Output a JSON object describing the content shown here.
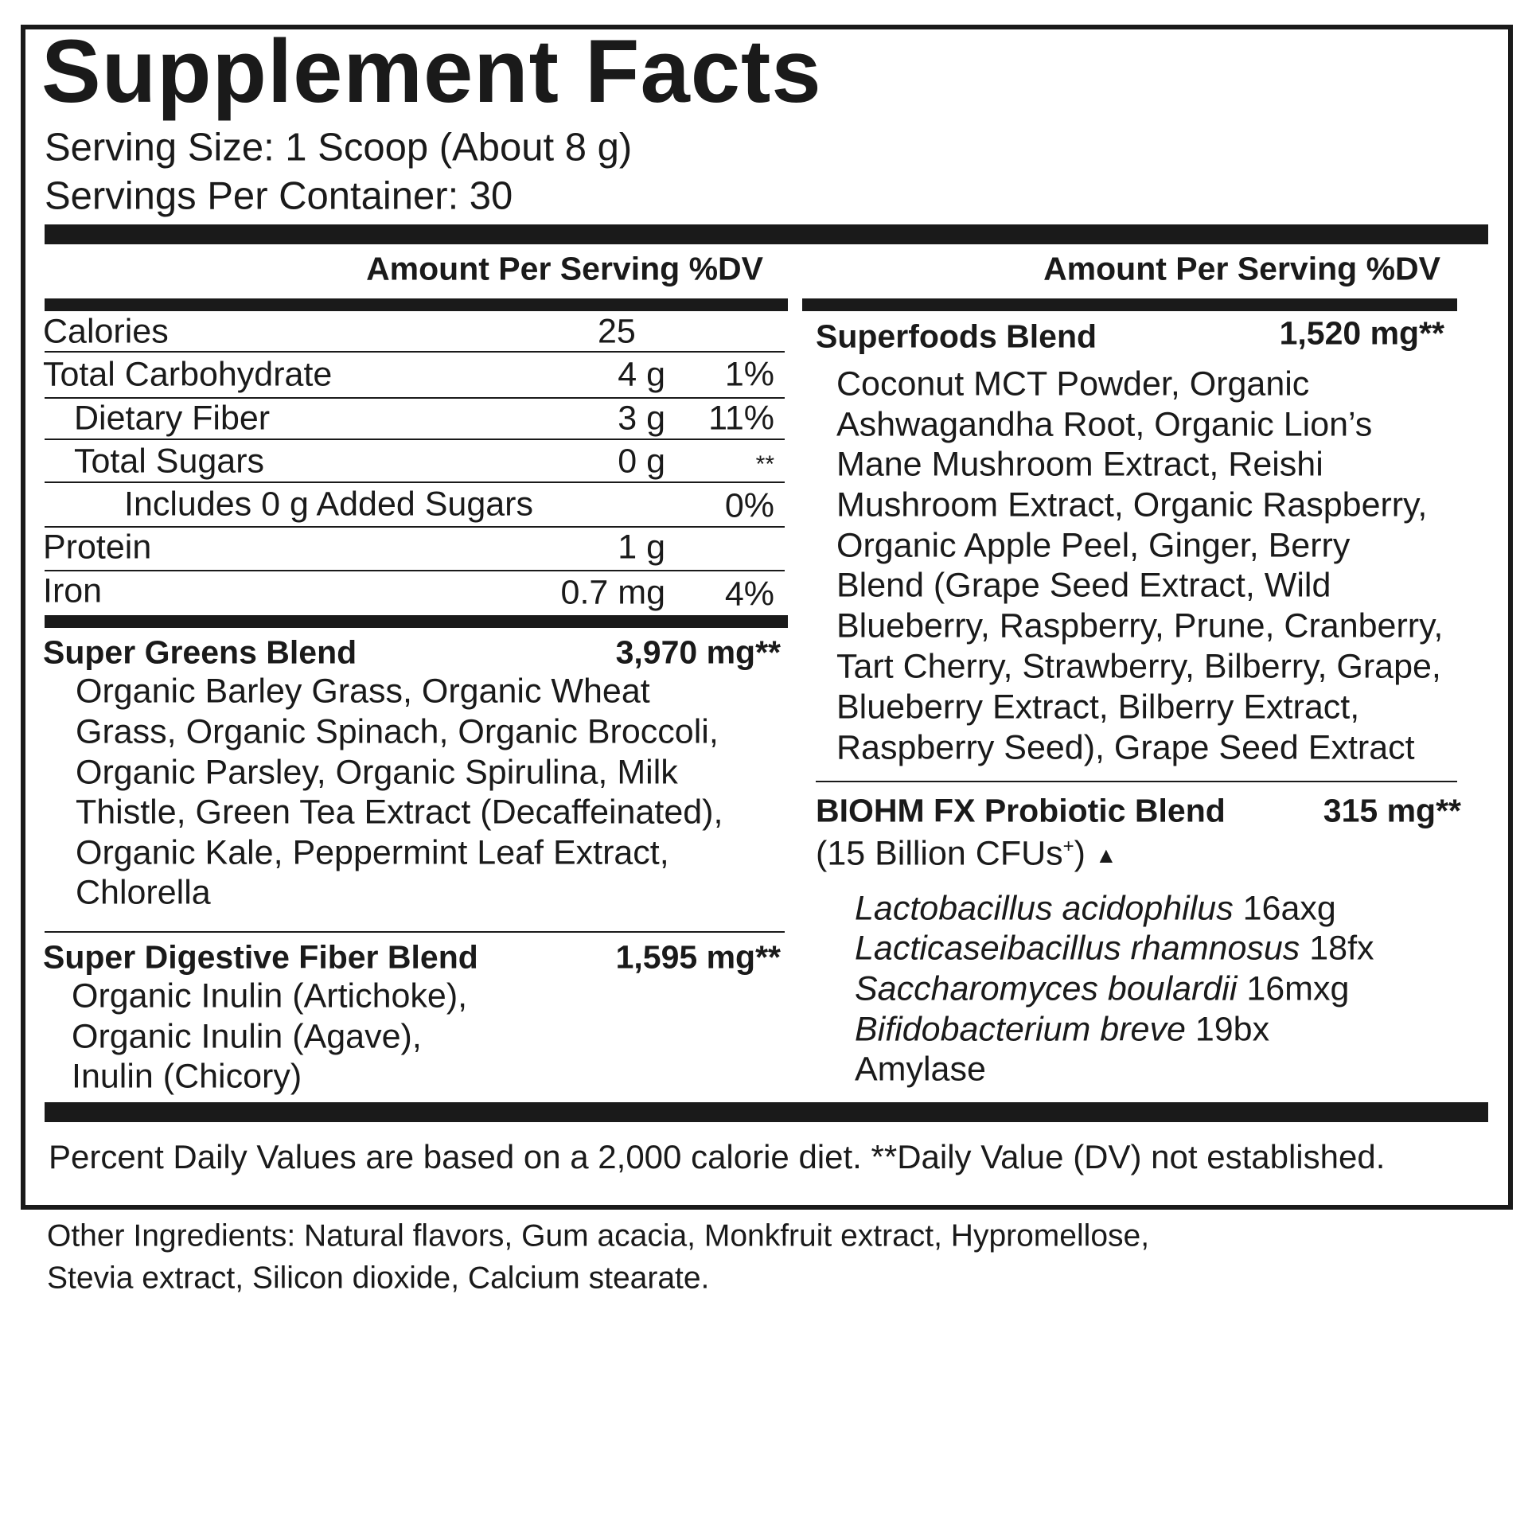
{
  "title": "Supplement Facts",
  "serving_size": "Serving Size: 1 Scoop (About 8 g)",
  "servings_per_container": "Servings Per Container: 30",
  "column_header": "Amount Per Serving %DV",
  "nutrients": [
    {
      "name": "Calories",
      "amount": "25",
      "dv": ""
    },
    {
      "name": "Total Carbohydrate",
      "amount": "4 g",
      "dv": "1%"
    },
    {
      "name": "Dietary Fiber",
      "amount": "3 g",
      "dv": "11%"
    },
    {
      "name": "Total Sugars",
      "amount": "0 g",
      "dv": "**"
    },
    {
      "name": "Includes 0 g Added Sugars",
      "amount": "",
      "dv": "0%"
    },
    {
      "name": "Protein",
      "amount": "1 g",
      "dv": ""
    },
    {
      "name": "Iron",
      "amount": "0.7 mg",
      "dv": "4%"
    }
  ],
  "super_greens": {
    "name": "Super Greens Blend",
    "amount": "3,970 mg**",
    "lines": [
      "Organic Barley Grass, Organic Wheat",
      "Grass, Organic Spinach, Organic Broccoli,",
      "Organic Parsley, Organic Spirulina, Milk",
      "Thistle, Green Tea Extract (Decaffeinated),",
      "Organic Kale, Peppermint Leaf Extract,",
      "Chlorella"
    ]
  },
  "super_digestive": {
    "name": "Super Digestive Fiber Blend",
    "amount": "1,595 mg**",
    "lines": [
      "Organic Inulin (Artichoke),",
      "Organic Inulin (Agave),",
      "Inulin (Chicory)"
    ]
  },
  "superfoods": {
    "name": "Superfoods Blend",
    "amount": "1,520 mg**",
    "lines": [
      "Coconut MCT Powder, Organic",
      "Ashwagandha Root, Organic Lion’s",
      "Mane Mushroom Extract, Reishi",
      "Mushroom Extract, Organic Raspberry,",
      "Organic Apple Peel, Ginger, Berry",
      "Blend (Grape Seed Extract, Wild",
      "Blueberry, Raspberry, Prune, Cranberry,",
      "Tart Cherry, Strawberry, Bilberry, Grape,",
      "Blueberry Extract, Bilberry Extract,",
      "Raspberry Seed), Grape Seed Extract"
    ]
  },
  "probiotic": {
    "name": "BIOHM FX Probiotic Blend",
    "amount": "315 mg**",
    "cfu_prefix": "(15 Billion CFUs",
    "cfu_sup": "+",
    "cfu_suffix": ")",
    "triangle": "▲",
    "strains": [
      {
        "species": "Lactobacillus acidophilus",
        "strain": "16axg"
      },
      {
        "species": "Lacticaseibacillus rhamnosus",
        "strain": "18fx"
      },
      {
        "species": "Saccharomyces boulardii",
        "strain": "16mxg"
      },
      {
        "species": "Bifidobacterium breve",
        "strain": "19bx"
      },
      {
        "species": "",
        "strain": "Amylase"
      }
    ]
  },
  "footnote": "Percent Daily Values are based on a 2,000 calorie diet. **Daily Value (DV) not established.",
  "other_ingredients": [
    "Other Ingredients: Natural flavors, Gum acacia, Monkfruit extract, Hypromellose,",
    "Stevia extract, Silicon dioxide, Calcium stearate."
  ]
}
